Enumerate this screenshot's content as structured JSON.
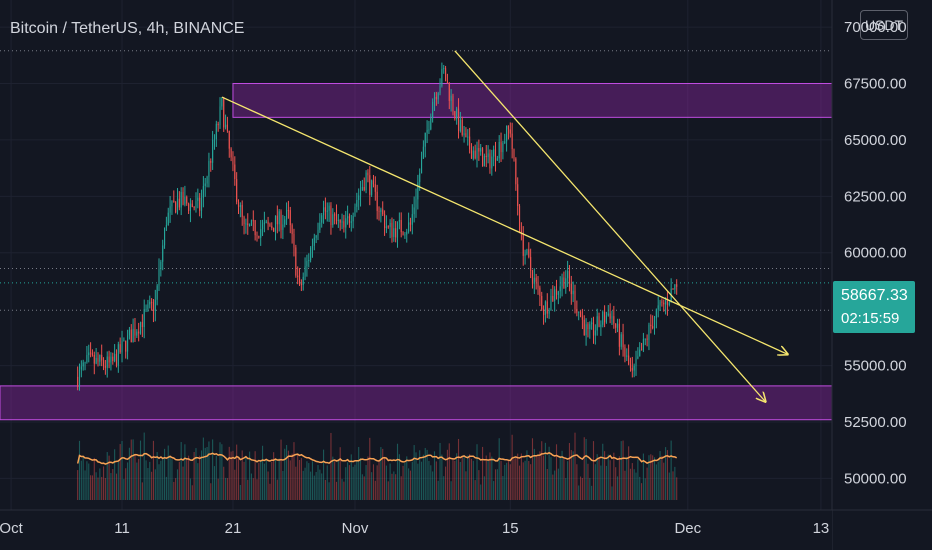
{
  "legend": {
    "symbol": "Bitcoin / TetherUS",
    "interval": "4h",
    "exchange": "BINANCE",
    "text": "Bitcoin / TetherUS, 4h, BINANCE"
  },
  "currency_button": "USDT",
  "price_tag": {
    "price": "58667.33",
    "countdown": "02:15:59"
  },
  "colors": {
    "background": "#131722",
    "up": "#26a69a",
    "down": "#ef5350",
    "zone": "#9c27b0",
    "trendline": "#f5e66e",
    "volume_ma": "#f7a254",
    "grid": "#1e2230",
    "text": "#d1d4dc"
  },
  "chart_data": {
    "type": "candlestick",
    "title": "Bitcoin / TetherUS, 4h, BINANCE",
    "y_axis": {
      "side": "right",
      "range": [
        48600,
        71200
      ],
      "ticks": [
        "70000.00",
        "67500.00",
        "65000.00",
        "62500.00",
        "60000.00",
        "55000.00",
        "52500.00",
        "50000.00"
      ],
      "tick_values": [
        70000,
        67500,
        65000,
        62500,
        60000,
        55000,
        52500,
        50000
      ]
    },
    "x_axis": {
      "range": [
        "2021-09-30",
        "2021-12-14"
      ],
      "ticks": [
        {
          "label": "Oct",
          "date": "2021-10-01"
        },
        {
          "label": "11",
          "date": "2021-10-11"
        },
        {
          "label": "21",
          "date": "2021-10-21"
        },
        {
          "label": "Nov",
          "date": "2021-11-01"
        },
        {
          "label": "15",
          "date": "2021-11-15"
        },
        {
          "label": "Dec",
          "date": "2021-12-01"
        },
        {
          "label": "13",
          "date": "2021-12-13"
        }
      ]
    },
    "last_price": 58667.33,
    "price_points": [
      {
        "date": "2021-10-07",
        "price": 54500
      },
      {
        "date": "2021-10-08",
        "price": 55200
      },
      {
        "date": "2021-10-10",
        "price": 55000
      },
      {
        "date": "2021-10-12",
        "price": 56500
      },
      {
        "date": "2021-10-14",
        "price": 57800
      },
      {
        "date": "2021-10-15",
        "price": 61500
      },
      {
        "date": "2021-10-16",
        "price": 62300
      },
      {
        "date": "2021-10-18",
        "price": 62000
      },
      {
        "date": "2021-10-20",
        "price": 66500
      },
      {
        "date": "2021-10-21",
        "price": 63500
      },
      {
        "date": "2021-10-22",
        "price": 61000
      },
      {
        "date": "2021-10-24",
        "price": 61100
      },
      {
        "date": "2021-10-26",
        "price": 61600
      },
      {
        "date": "2021-10-27",
        "price": 58300
      },
      {
        "date": "2021-10-29",
        "price": 62000
      },
      {
        "date": "2021-10-31",
        "price": 61000
      },
      {
        "date": "2021-11-02",
        "price": 63400
      },
      {
        "date": "2021-11-04",
        "price": 61000
      },
      {
        "date": "2021-11-06",
        "price": 61200
      },
      {
        "date": "2021-11-08",
        "price": 66800
      },
      {
        "date": "2021-11-09",
        "price": 68000
      },
      {
        "date": "2021-11-10",
        "price": 66200
      },
      {
        "date": "2021-11-11",
        "price": 64800
      },
      {
        "date": "2021-11-13",
        "price": 64000
      },
      {
        "date": "2021-11-15",
        "price": 65500
      },
      {
        "date": "2021-11-16",
        "price": 60500
      },
      {
        "date": "2021-11-18",
        "price": 57500
      },
      {
        "date": "2021-11-20",
        "price": 59000
      },
      {
        "date": "2021-11-22",
        "price": 56300
      },
      {
        "date": "2021-11-24",
        "price": 57400
      },
      {
        "date": "2021-11-26",
        "price": 54500
      },
      {
        "date": "2021-11-28",
        "price": 57200
      },
      {
        "date": "2021-11-29",
        "price": 57800
      },
      {
        "date": "2021-11-30",
        "price": 58667.33
      }
    ],
    "candle_seed": 7,
    "zones": [
      {
        "from": 66000,
        "to": 67500,
        "start": "2021-10-21",
        "end": "extend"
      },
      {
        "from": 52600,
        "to": 54100,
        "start": "2021-09-30",
        "end": "extend"
      }
    ],
    "trendlines": [
      {
        "start": {
          "date": "2021-10-20",
          "price": 66900
        },
        "end": {
          "date": "2021-12-10",
          "price": 55500
        },
        "arrow": true
      },
      {
        "start": {
          "date": "2021-11-10",
          "price": 68950
        },
        "end": {
          "date": "2021-12-08",
          "price": 53400
        },
        "arrow": true
      }
    ],
    "horizontal_levels": [
      {
        "price": 68950,
        "style": "dotted"
      },
      {
        "price": 59300,
        "style": "dotted"
      },
      {
        "price": 58667.33,
        "style": "dotted"
      },
      {
        "price": 57450,
        "style": "dotted"
      }
    ],
    "volume": {
      "shown": true,
      "ma_shown": true
    },
    "grid": true
  }
}
